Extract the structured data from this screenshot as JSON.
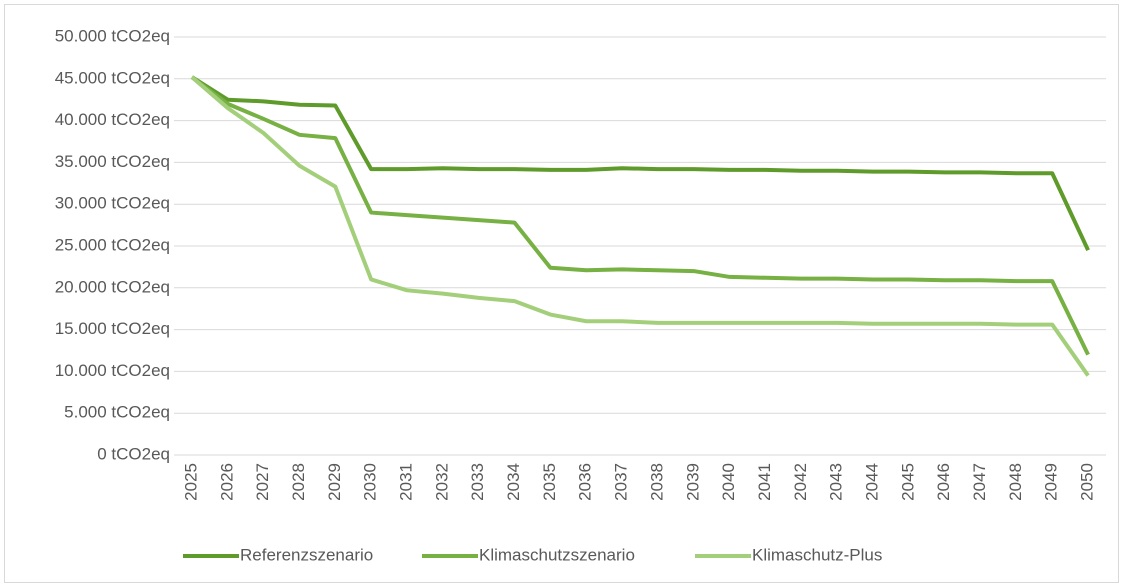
{
  "chart_data": {
    "type": "line",
    "categories": [
      "2025",
      "2026",
      "2027",
      "2028",
      "2029",
      "2030",
      "2031",
      "2032",
      "2033",
      "2034",
      "2035",
      "2036",
      "2037",
      "2038",
      "2039",
      "2040",
      "2041",
      "2042",
      "2043",
      "2044",
      "2045",
      "2046",
      "2047",
      "2048",
      "2049",
      "2050"
    ],
    "series": [
      {
        "name": "Referenzszenario",
        "color": "#5e9b2a",
        "values": [
          45200,
          42500,
          42300,
          41900,
          41800,
          34200,
          34200,
          34300,
          34200,
          34200,
          34100,
          34100,
          34300,
          34200,
          34200,
          34100,
          34100,
          34000,
          34000,
          33900,
          33900,
          33800,
          33800,
          33700,
          33700,
          24500
        ]
      },
      {
        "name": "Klimaschutzszenario",
        "color": "#77b043",
        "values": [
          45200,
          42000,
          40200,
          38300,
          37900,
          29000,
          28700,
          28400,
          28100,
          27800,
          22400,
          22100,
          22200,
          22100,
          22000,
          21300,
          21200,
          21100,
          21100,
          21000,
          21000,
          20900,
          20900,
          20800,
          20800,
          12000
        ]
      },
      {
        "name": "Klimaschutz-Plus",
        "color": "#a3cf7a",
        "values": [
          45200,
          41500,
          38500,
          34600,
          32100,
          21000,
          19700,
          19300,
          18800,
          18400,
          16800,
          16000,
          16000,
          15800,
          15800,
          15800,
          15800,
          15800,
          15800,
          15700,
          15700,
          15700,
          15700,
          15600,
          15600,
          9500
        ]
      }
    ],
    "ylim": [
      0,
      50000
    ],
    "yticks": [
      {
        "value": 0,
        "label": "0 tCO2eq"
      },
      {
        "value": 5000,
        "label": "5.000 tCO2eq"
      },
      {
        "value": 10000,
        "label": "10.000 tCO2eq"
      },
      {
        "value": 15000,
        "label": "15.000 tCO2eq"
      },
      {
        "value": 20000,
        "label": "20.000 tCO2eq"
      },
      {
        "value": 25000,
        "label": "25.000 tCO2eq"
      },
      {
        "value": 30000,
        "label": "30.000 tCO2eq"
      },
      {
        "value": 35000,
        "label": "35.000 tCO2eq"
      },
      {
        "value": 40000,
        "label": "40.000 tCO2eq"
      },
      {
        "value": 45000,
        "label": "45.000 tCO2eq"
      },
      {
        "value": 50000,
        "label": "50.000 tCO2eq"
      }
    ],
    "grid": true,
    "legend": "bottom"
  }
}
